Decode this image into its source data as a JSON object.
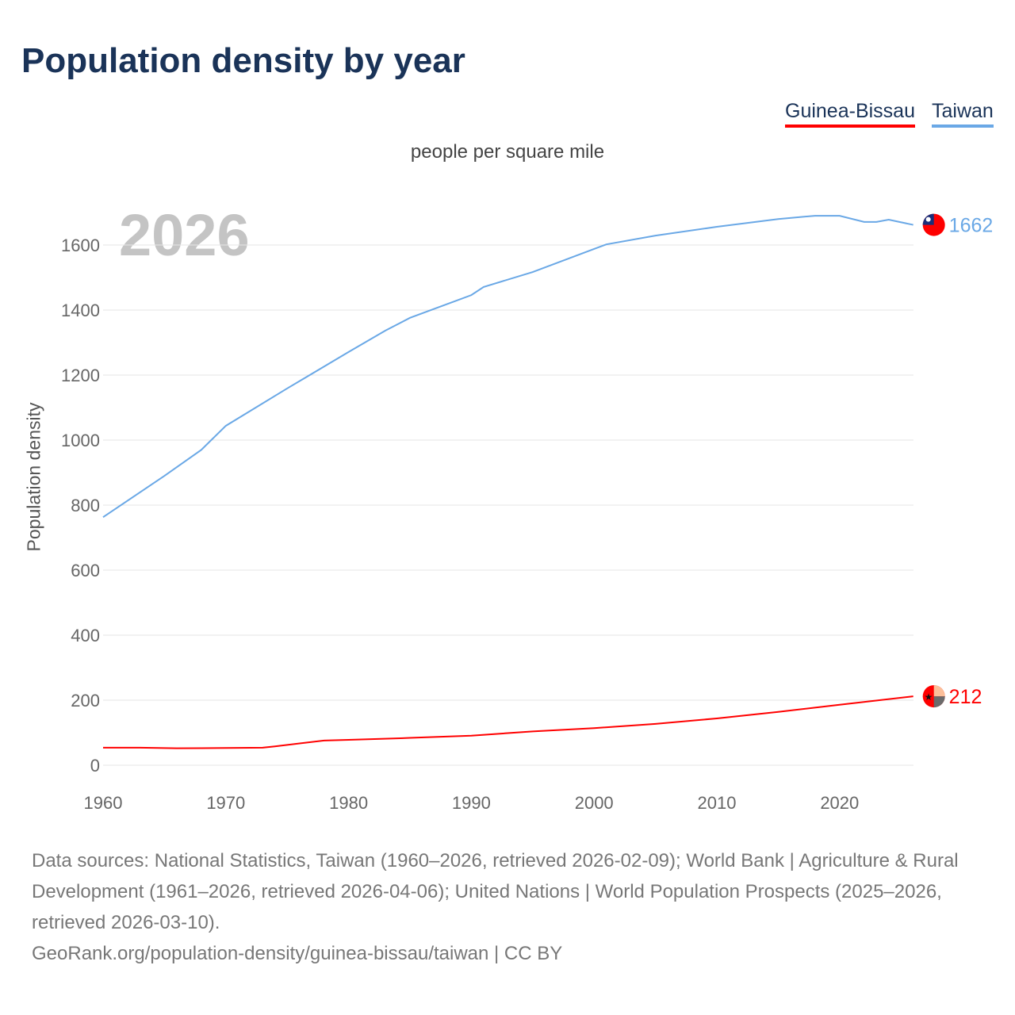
{
  "title": "Population density by year",
  "legend": [
    {
      "name": "Guinea-Bissau",
      "color": "#ff0000"
    },
    {
      "name": "Taiwan",
      "color": "#6aa8e6"
    }
  ],
  "footer": {
    "sources": "Data sources: National Statistics, Taiwan (1960–2026, retrieved 2026-02-09); World Bank | Agriculture & Rural Development (1961–2026, retrieved 2026-04-06); United Nations | World Population Prospects (2025–2026, retrieved 2026-03-10).",
    "link": "GeoRank.org/population-density/guinea-bissau/taiwan | CC BY"
  },
  "chart_data": {
    "type": "line",
    "subtitle": "people per square mile",
    "ylabel": "Population density",
    "year_label": "2026",
    "xlim": [
      1960,
      2026
    ],
    "ylim": [
      0,
      1700
    ],
    "xticks": [
      1960,
      1970,
      1980,
      1990,
      2000,
      2010,
      2020
    ],
    "yticks": [
      0,
      200,
      400,
      600,
      800,
      1000,
      1200,
      1400,
      1600
    ],
    "series": [
      {
        "name": "Taiwan",
        "color": "#6aa8e6",
        "end_label": "1662",
        "x": [
          1960,
          1965,
          1968,
          1970,
          1975,
          1980,
          1983,
          1985,
          1990,
          1991,
          1995,
          2000,
          2001,
          2005,
          2010,
          2015,
          2018,
          2020,
          2022,
          2023,
          2024,
          2026
        ],
        "y": [
          763,
          890,
          970,
          1044,
          1159,
          1271,
          1337,
          1376,
          1446,
          1471,
          1517,
          1588,
          1602,
          1629,
          1656,
          1680,
          1690,
          1690,
          1671,
          1671,
          1678,
          1662
        ]
      },
      {
        "name": "Guinea-Bissau",
        "color": "#ff0000",
        "end_label": "212",
        "x": [
          1960,
          1963,
          1966,
          1970,
          1973,
          1974,
          1978,
          1980,
          1985,
          1990,
          1995,
          2000,
          2005,
          2010,
          2015,
          2020,
          2026
        ],
        "y": [
          54,
          54,
          52,
          53,
          54,
          58,
          76,
          78,
          84,
          91,
          104,
          114,
          127,
          144,
          164,
          186,
          212
        ]
      }
    ]
  }
}
